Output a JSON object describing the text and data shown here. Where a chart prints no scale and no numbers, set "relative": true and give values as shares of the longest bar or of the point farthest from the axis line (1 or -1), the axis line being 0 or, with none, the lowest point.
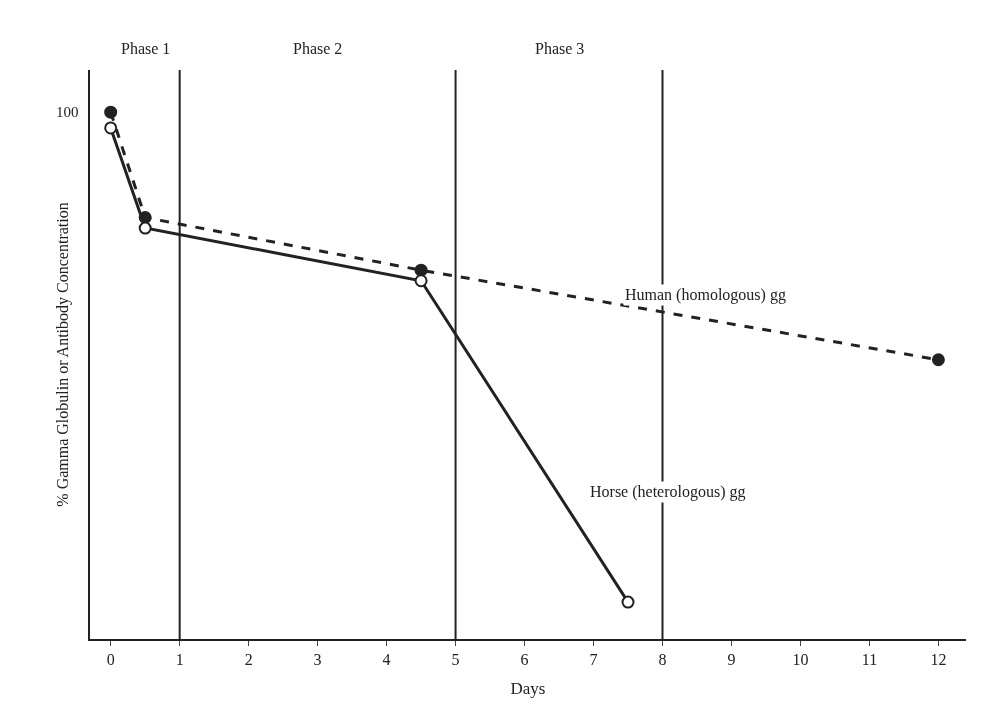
{
  "chart_data": {
    "type": "line",
    "xlabel": "Days",
    "ylabel": "% Gamma Globulin or Antibody Concentration",
    "x": [
      0,
      0.5,
      4.5,
      12
    ],
    "xlim": [
      -0.3,
      12.4
    ],
    "xticks": [
      0,
      1,
      2,
      3,
      4,
      5,
      6,
      7,
      8,
      9,
      10,
      11,
      12
    ],
    "relative": true,
    "series": [
      {
        "name": "Human (homologous) gg",
        "color": "#222222",
        "values": [
          1,
          0.8,
          0.7,
          0.53
        ],
        "line_style": "dashed",
        "marker": "circle"
      },
      {
        "name": "Horse (heterologous) gg",
        "color": "#222222",
        "x": [
          0,
          0.5,
          4.5,
          7.5
        ],
        "values": [
          0.97,
          0.78,
          0.68,
          0.07
        ],
        "line_style": "solid",
        "marker": "circle-open"
      }
    ],
    "ref_lines": [
      {
        "axis": "x",
        "value": 1,
        "color": "#222222",
        "line_style": "solid"
      },
      {
        "axis": "x",
        "value": 5,
        "color": "#222222",
        "line_style": "solid"
      },
      {
        "axis": "x",
        "value": 8,
        "color": "#222222",
        "line_style": "solid"
      }
    ],
    "annotations": [
      {
        "text": "100",
        "x": 0,
        "y": 1
      },
      "Phase 1",
      "Phase 2",
      "Phase 3"
    ],
    "legend": false
  }
}
